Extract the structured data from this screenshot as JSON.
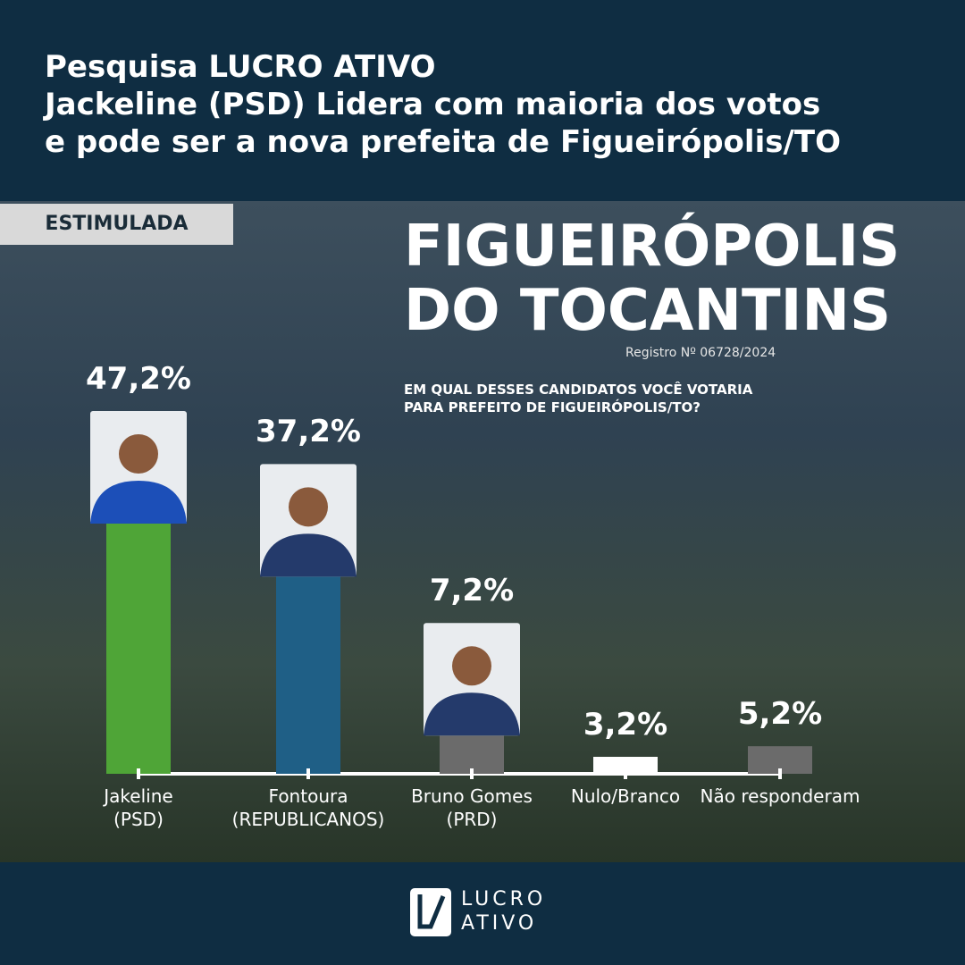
{
  "chart_data": {
    "type": "bar",
    "title": "Pesquisa LUCRO ATIVO",
    "subtitle": "Jackeline (PSD) Lidera com maioria dos votos\ne pode ser a nova prefeita de Figueirópolis/TO",
    "badge": "ESTIMULADA",
    "city": "FIGUEIRÓPOLIS\nDO TOCANTINS",
    "registration": "Registro Nº 06728/2024",
    "question": "EM QUAL DESSES CANDIDATOS VOCÊ VOTARIA\nPARA PREFEITO DE FIGUEIRÓPOLIS/TO?",
    "categories": [
      "Jakeline\n(PSD)",
      "Fontoura\n(REPUBLICANOS)",
      "Bruno Gomes\n(PRD)",
      "Nulo/Branco",
      "Não responderam"
    ],
    "values": [
      47.2,
      37.2,
      7.2,
      3.2,
      5.2
    ],
    "value_labels": [
      "47,2%",
      "37,2%",
      "7,2%",
      "3,2%",
      "5,2%"
    ],
    "colors": [
      "#4fa537",
      "#1f5f86",
      "#6b6b6b",
      "#ffffff",
      "#6b6b6b"
    ],
    "logo": "LUCRO\nATIVO"
  }
}
